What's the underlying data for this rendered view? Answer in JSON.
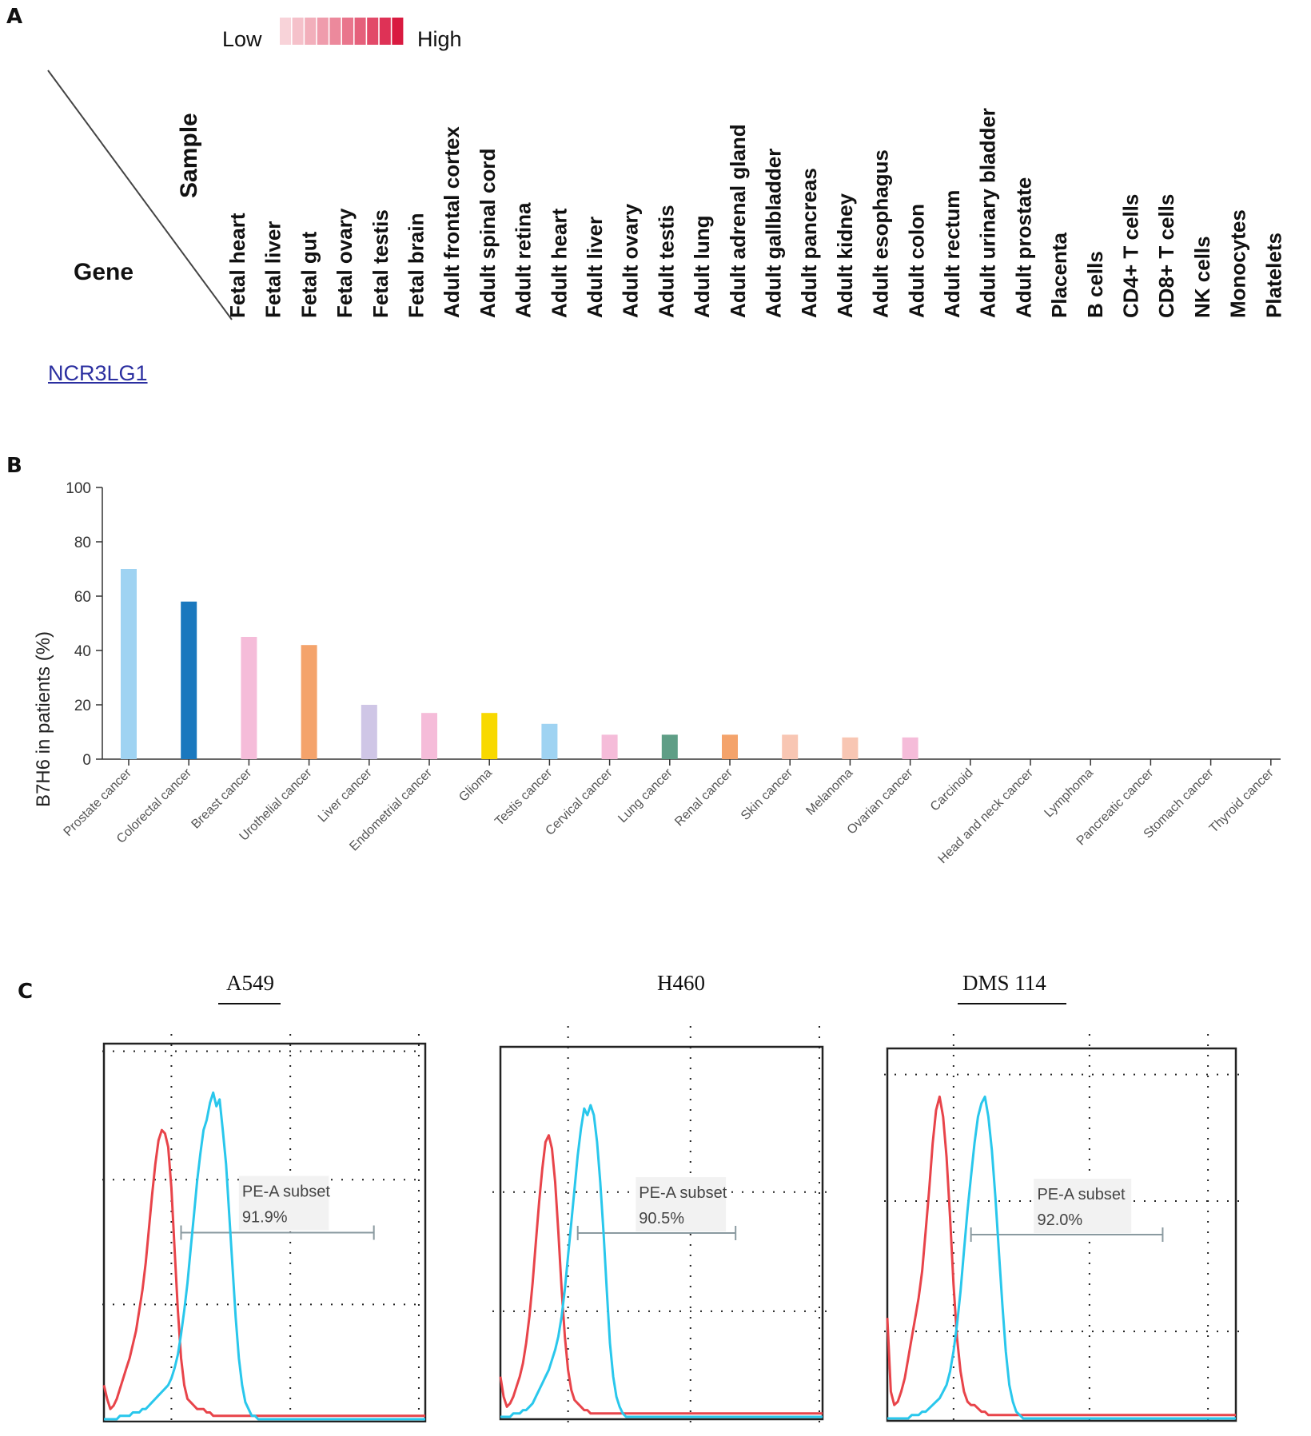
{
  "panels": {
    "a": "A",
    "b": "B",
    "c": "C"
  },
  "panel_a": {
    "legend_low": "Low",
    "legend_high": "High",
    "legend_colors": [
      "#f8d3d9",
      "#f5c1ca",
      "#f2afbb",
      "#ef9cac",
      "#ec899c",
      "#e9758c",
      "#e5607b",
      "#e24a69",
      "#de3256",
      "#d91a40"
    ],
    "corner_sample": "Sample",
    "corner_gene": "Gene",
    "samples": [
      "Fetal heart",
      "Fetal liver",
      "Fetal gut",
      "Fetal ovary",
      "Fetal testis",
      "Fetal brain",
      "Adult frontal cortex",
      "Adult spinal cord",
      "Adult retina",
      "Adult heart",
      "Adult liver",
      "Adult ovary",
      "Adult testis",
      "Adult lung",
      "Adult adrenal gland",
      "Adult gallbladder",
      "Adult pancreas",
      "Adult kidney",
      "Adult esophagus",
      "Adult colon",
      "Adult rectum",
      "Adult urinary bladder",
      "Adult prostate",
      "Placenta",
      "B cells",
      "CD4+ T cells",
      "CD8+ T cells",
      "NK cells",
      "Monocytes",
      "Platelets"
    ],
    "gene": "NCR3LG1"
  },
  "chart_data": [
    {
      "type": "bar",
      "ylabel": "B7H6 in patients (%)",
      "ylim": [
        0,
        100
      ],
      "yticks": [
        0,
        20,
        40,
        60,
        80,
        100
      ],
      "categories": [
        "Prostate cancer",
        "Colorectal cancer",
        "Breast cancer",
        "Urothelial cancer",
        "Liver cancer",
        "Endometrial cancer",
        "Glioma",
        "Testis cancer",
        "Cervical cancer",
        "Lung cancer",
        "Renal cancer",
        "Skin cancer",
        "Melanoma",
        "Ovarian cancer",
        "Carcinoid",
        "Head and neck cancer",
        "Lymphoma",
        "Pancreatic cancer",
        "Stomach cancer",
        "Thyroid cancer"
      ],
      "values": [
        70,
        58,
        45,
        42,
        20,
        17,
        17,
        13,
        9,
        9,
        9,
        9,
        8,
        8,
        0,
        0,
        0,
        0,
        0,
        0
      ],
      "colors": [
        "#9fd3f2",
        "#1a78be",
        "#f5bcd9",
        "#f4a36b",
        "#cfc6e6",
        "#f5bcd9",
        "#f8d900",
        "#9fd3f2",
        "#f5bcd9",
        "#5f9e86",
        "#f4a36b",
        "#f8c6b3",
        "#f8c6b3",
        "#f5bcd9",
        "#f5bcd9",
        "#f5bcd9",
        "#f5bcd9",
        "#f5bcd9",
        "#f5bcd9",
        "#f5bcd9"
      ]
    },
    {
      "type": "area",
      "title": "A549",
      "annotation_label": "PE-A subset",
      "annotation_value": "91.9%",
      "x": [
        0,
        1,
        2,
        3,
        4,
        5,
        6,
        7,
        8,
        9,
        10,
        11,
        12,
        13,
        14,
        15,
        16,
        17,
        18,
        19,
        20,
        21,
        22,
        23,
        24,
        25,
        26,
        27,
        28,
        29,
        30,
        31,
        32,
        33,
        34,
        35,
        36,
        37,
        38,
        39,
        40,
        41,
        42,
        43,
        44,
        45,
        46,
        47,
        48,
        49,
        50,
        51,
        52,
        53,
        54,
        55,
        56,
        57,
        58,
        59,
        60,
        61,
        62,
        63,
        64,
        65,
        66,
        67,
        68,
        69,
        70,
        71,
        72,
        73,
        74,
        75,
        76,
        77,
        78,
        79,
        80,
        81,
        82,
        83,
        84,
        85,
        86,
        87,
        88,
        89,
        90,
        91,
        92,
        93,
        94,
        95,
        96,
        97,
        98,
        99,
        100
      ],
      "series": [
        {
          "color": "#e8444a",
          "values": [
            10,
            6,
            3,
            4,
            6,
            9,
            12,
            15,
            18,
            22,
            26,
            32,
            38,
            46,
            56,
            66,
            75,
            82,
            85,
            84,
            80,
            68,
            50,
            32,
            18,
            10,
            6,
            5,
            4,
            3,
            3,
            3,
            2,
            2,
            1,
            1,
            1,
            1,
            1,
            1,
            1,
            1,
            1,
            1,
            1,
            1,
            1,
            1,
            1,
            1,
            1,
            1,
            1,
            1,
            1,
            1,
            1,
            1,
            1,
            1,
            1,
            1,
            1,
            1,
            1,
            1,
            1,
            1,
            1,
            1,
            1,
            1,
            1,
            1,
            1,
            1,
            1,
            1,
            1,
            1,
            1,
            1,
            1,
            1,
            1,
            1,
            1,
            1,
            1,
            1,
            1,
            1,
            1,
            1,
            1,
            1,
            1,
            1,
            1,
            1,
            1
          ]
        },
        {
          "color": "#29c7ec",
          "values": [
            0,
            0,
            0,
            0,
            0,
            1,
            1,
            1,
            1,
            2,
            2,
            2,
            3,
            3,
            4,
            5,
            6,
            7,
            8,
            9,
            10,
            12,
            15,
            19,
            25,
            32,
            40,
            50,
            60,
            70,
            78,
            85,
            88,
            93,
            96,
            92,
            94,
            85,
            75,
            60,
            45,
            30,
            18,
            10,
            5,
            3,
            1,
            1,
            0,
            0,
            0,
            0,
            0,
            0,
            0,
            0,
            0,
            0,
            0,
            0,
            0,
            0,
            0,
            0,
            0,
            0,
            0,
            0,
            0,
            0,
            0,
            0,
            0,
            0,
            0,
            0,
            0,
            0,
            0,
            0,
            0,
            0,
            0,
            0,
            0,
            0,
            0,
            0,
            0,
            0,
            0,
            0,
            0,
            0,
            0,
            0,
            0,
            0,
            0,
            0,
            0
          ]
        }
      ],
      "gate": [
        24,
        84
      ]
    },
    {
      "type": "area",
      "title": "H460",
      "annotation_label": "PE-A subset",
      "annotation_value": "90.5%",
      "x": [
        0,
        1,
        2,
        3,
        4,
        5,
        6,
        7,
        8,
        9,
        10,
        11,
        12,
        13,
        14,
        15,
        16,
        17,
        18,
        19,
        20,
        21,
        22,
        23,
        24,
        25,
        26,
        27,
        28,
        29,
        30,
        31,
        32,
        33,
        34,
        35,
        36,
        37,
        38,
        39,
        40,
        41,
        42,
        43,
        44,
        45,
        46,
        47,
        48,
        49,
        50,
        51,
        52,
        53,
        54,
        55,
        56,
        57,
        58,
        59,
        60,
        61,
        62,
        63,
        64,
        65,
        66,
        67,
        68,
        69,
        70,
        71,
        72,
        73,
        74,
        75,
        76,
        77,
        78,
        79,
        80,
        81,
        82,
        83,
        84,
        85,
        86,
        87,
        88,
        89,
        90,
        91,
        92,
        93,
        94,
        95,
        96,
        97,
        98,
        99,
        100
      ],
      "series": [
        {
          "color": "#e8444a",
          "values": [
            12,
            6,
            3,
            4,
            6,
            9,
            12,
            16,
            22,
            30,
            40,
            52,
            64,
            74,
            82,
            84,
            80,
            70,
            55,
            38,
            24,
            14,
            8,
            5,
            4,
            3,
            2,
            2,
            1,
            1,
            1,
            1,
            1,
            1,
            1,
            1,
            1,
            1,
            1,
            1,
            1,
            1,
            1,
            1,
            1,
            1,
            1,
            1,
            1,
            1,
            1,
            1,
            1,
            1,
            1,
            1,
            1,
            1,
            1,
            1,
            1,
            1,
            1,
            1,
            1,
            1,
            1,
            1,
            1,
            1,
            1,
            1,
            1,
            1,
            1,
            1,
            1,
            1,
            1,
            1,
            1,
            1,
            1,
            1,
            1,
            1,
            1,
            1,
            1,
            1,
            1,
            1,
            1,
            1,
            1,
            1,
            1,
            1,
            1,
            1,
            1
          ]
        },
        {
          "color": "#29c7ec",
          "values": [
            0,
            0,
            0,
            0,
            1,
            1,
            1,
            2,
            2,
            3,
            4,
            6,
            8,
            10,
            12,
            14,
            17,
            20,
            24,
            30,
            38,
            48,
            58,
            68,
            78,
            86,
            92,
            90,
            93,
            90,
            82,
            70,
            55,
            38,
            22,
            12,
            6,
            3,
            1,
            0,
            0,
            0,
            0,
            0,
            0,
            0,
            0,
            0,
            0,
            0,
            0,
            0,
            0,
            0,
            0,
            0,
            0,
            0,
            0,
            0,
            0,
            0,
            0,
            0,
            0,
            0,
            0,
            0,
            0,
            0,
            0,
            0,
            0,
            0,
            0,
            0,
            0,
            0,
            0,
            0,
            0,
            0,
            0,
            0,
            0,
            0,
            0,
            0,
            0,
            0,
            0,
            0,
            0,
            0,
            0,
            0,
            0,
            0,
            0,
            0,
            0
          ]
        }
      ],
      "gate": [
        24,
        73
      ]
    },
    {
      "type": "area",
      "title": "DMS 114",
      "annotation_label": "PE-A subset",
      "annotation_value": "92.0%",
      "x": [
        0,
        1,
        2,
        3,
        4,
        5,
        6,
        7,
        8,
        9,
        10,
        11,
        12,
        13,
        14,
        15,
        16,
        17,
        18,
        19,
        20,
        21,
        22,
        23,
        24,
        25,
        26,
        27,
        28,
        29,
        30,
        31,
        32,
        33,
        34,
        35,
        36,
        37,
        38,
        39,
        40,
        41,
        42,
        43,
        44,
        45,
        46,
        47,
        48,
        49,
        50,
        51,
        52,
        53,
        54,
        55,
        56,
        57,
        58,
        59,
        60,
        61,
        62,
        63,
        64,
        65,
        66,
        67,
        68,
        69,
        70,
        71,
        72,
        73,
        74,
        75,
        76,
        77,
        78,
        79,
        80,
        81,
        82,
        83,
        84,
        85,
        86,
        87,
        88,
        89,
        90,
        91,
        92,
        93,
        94,
        95,
        96,
        97,
        98,
        99,
        100
      ],
      "series": [
        {
          "color": "#e8444a",
          "values": [
            30,
            8,
            4,
            5,
            8,
            12,
            18,
            24,
            30,
            36,
            44,
            56,
            68,
            82,
            92,
            96,
            90,
            78,
            60,
            40,
            24,
            14,
            8,
            5,
            4,
            4,
            3,
            2,
            2,
            1,
            1,
            1,
            1,
            1,
            1,
            1,
            1,
            1,
            1,
            1,
            1,
            1,
            1,
            1,
            1,
            1,
            1,
            1,
            1,
            1,
            1,
            1,
            1,
            1,
            1,
            1,
            1,
            1,
            1,
            1,
            1,
            1,
            1,
            1,
            1,
            1,
            1,
            1,
            1,
            1,
            1,
            1,
            1,
            1,
            1,
            1,
            1,
            1,
            1,
            1,
            1,
            1,
            1,
            1,
            1,
            1,
            1,
            1,
            1,
            1,
            1,
            1,
            1,
            1,
            1,
            1,
            1,
            1,
            1,
            1,
            1
          ]
        },
        {
          "color": "#29c7ec",
          "values": [
            0,
            0,
            0,
            0,
            0,
            0,
            0,
            1,
            1,
            1,
            2,
            2,
            3,
            4,
            5,
            6,
            8,
            10,
            14,
            20,
            28,
            38,
            50,
            62,
            72,
            82,
            90,
            94,
            96,
            90,
            80,
            66,
            50,
            34,
            20,
            10,
            5,
            2,
            1,
            0,
            0,
            0,
            0,
            0,
            0,
            0,
            0,
            0,
            0,
            0,
            0,
            0,
            0,
            0,
            0,
            0,
            0,
            0,
            0,
            0,
            0,
            0,
            0,
            0,
            0,
            0,
            0,
            0,
            0,
            0,
            0,
            0,
            0,
            0,
            0,
            0,
            0,
            0,
            0,
            0,
            0,
            0,
            0,
            0,
            0,
            0,
            0,
            0,
            0,
            0,
            0,
            0,
            0,
            0,
            0,
            0,
            0,
            0,
            0,
            0,
            0
          ]
        }
      ],
      "gate": [
        24,
        79
      ]
    }
  ]
}
